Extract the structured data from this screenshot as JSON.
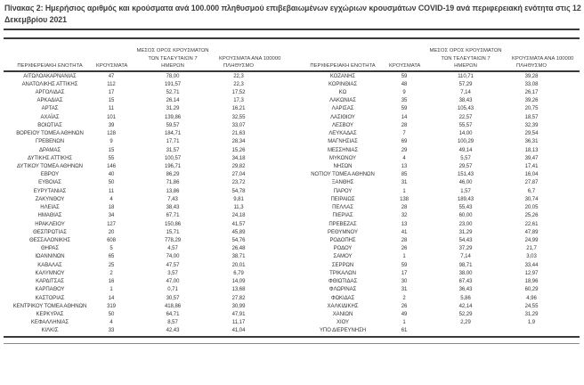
{
  "title": "Πίνακας 2: Ημερήσιος αριθμός και κρούσματα ανά 100.000 πληθυσμού επιβεβαιωμένων εγχώριων κρουσμάτων COVID-19 ανά περιφερειακή ενότητα στις 12 Δεκεμβρίου 2021",
  "columns": {
    "region": "ΠΕΡΙΦΕΡΕΙΑΚΗ ΕΝΟΤΗΤΑ",
    "cases": "ΚΡΟΥΣΜΑΤΑ",
    "avg7_lines": [
      "ΜΕΣΟΣ ΟΡΟΣ ΚΡΟΥΣΜΑΤΩΝ",
      "ΤΩΝ ΤΕΛΕΥΤΑΙΩΝ 7",
      "ΗΜΕΡΩΝ"
    ],
    "per100k_lines": [
      "ΚΡΟΥΣΜΑΤΑ ΑΝΑ 100000",
      "ΠΛΗΘΥΣΜΟ"
    ]
  },
  "tables": {
    "left": {
      "rows": [
        [
          "ΑΙΤΩΛΟΑΚΑΡΝΑΝΙΑΣ",
          "47",
          "78,00",
          "22,3"
        ],
        [
          "ΑΝΑΤΟΛΙΚΗΣ ΑΤΤΙΚΗΣ",
          "112",
          "191,57",
          "22,3"
        ],
        [
          "ΑΡΓΟΛΙΔΑΣ",
          "17",
          "52,71",
          "17,52"
        ],
        [
          "ΑΡΚΑΔΙΑΣ",
          "15",
          "26,14",
          "17,3"
        ],
        [
          "ΑΡΤΑΣ",
          "11",
          "31,29",
          "16,21"
        ],
        [
          "ΑΧΑΪΑΣ",
          "101",
          "139,86",
          "32,55"
        ],
        [
          "ΒΟΙΩΤΙΑΣ",
          "39",
          "59,57",
          "33,07"
        ],
        [
          "ΒΟΡΕΙΟΥ ΤΟΜΕΑ ΑΘΗΝΩΝ",
          "128",
          "184,71",
          "21,63"
        ],
        [
          "ΓΡΕΒΕΝΩΝ",
          "9",
          "17,71",
          "28,34"
        ],
        [
          "ΔΡΑΜΑΣ",
          "15",
          "31,57",
          "15,26"
        ],
        [
          "ΔΥΤΙΚΗΣ ΑΤΤΙΚΗΣ",
          "55",
          "100,57",
          "34,18"
        ],
        [
          "ΔΥΤΙΚΟΥ ΤΟΜΕΑ ΑΘΗΝΩΝ",
          "146",
          "196,71",
          "29,82"
        ],
        [
          "ΕΒΡΟΥ",
          "40",
          "86,29",
          "27,04"
        ],
        [
          "ΕΥΒΟΙΑΣ",
          "50",
          "71,86",
          "23,72"
        ],
        [
          "ΕΥΡΥΤΑΝΙΑΣ",
          "11",
          "13,86",
          "54,78"
        ],
        [
          "ΖΑΚΥΝΘΟΥ",
          "4",
          "7,43",
          "9,81"
        ],
        [
          "ΗΛΕΙΑΣ",
          "18",
          "38,43",
          "11,3"
        ],
        [
          "ΗΜΑΘΙΑΣ",
          "34",
          "67,71",
          "24,18"
        ],
        [
          "ΗΡΑΚΛΕΙΟΥ",
          "127",
          "150,86",
          "41,57"
        ],
        [
          "ΘΕΣΠΡΩΤΙΑΣ",
          "20",
          "15,71",
          "45,89"
        ],
        [
          "ΘΕΣΣΑΛΟΝΙΚΗΣ",
          "608",
          "778,29",
          "54,76"
        ],
        [
          "ΘΗΡΑΣ",
          "5",
          "4,57",
          "26,48"
        ],
        [
          "ΙΩΑΝΝΙΝΩΝ",
          "65",
          "74,00",
          "38,71"
        ],
        [
          "ΚΑΒΑΛΑΣ",
          "25",
          "47,57",
          "20,01"
        ],
        [
          "ΚΑΛΥΜΝΟΥ",
          "2",
          "3,57",
          "6,79"
        ],
        [
          "ΚΑΡΔΙΤΣΑΣ",
          "16",
          "47,00",
          "14,09"
        ],
        [
          "ΚΑΡΠΑΘΟΥ",
          "1",
          "0,71",
          "13,68"
        ],
        [
          "ΚΑΣΤΟΡΙΑΣ",
          "14",
          "30,57",
          "27,82"
        ],
        [
          "ΚΕΝΤΡΙΚΟΥ ΤΟΜΕΑ ΑΘΗΝΩΝ",
          "319",
          "418,86",
          "30,99"
        ],
        [
          "ΚΕΡΚΥΡΑΣ",
          "50",
          "64,71",
          "47,91"
        ],
        [
          "ΚΕΦΑΛΛΗΝΙΑΣ",
          "4",
          "8,57",
          "11,17"
        ],
        [
          "ΚΙΛΚΙΣ",
          "33",
          "42,43",
          "41,04"
        ]
      ]
    },
    "right": {
      "rows": [
        [
          "ΚΟΖΑΝΗΣ",
          "59",
          "110,71",
          "39,28"
        ],
        [
          "ΚΟΡΙΝΘΙΑΣ",
          "48",
          "57,29",
          "33,08"
        ],
        [
          "ΚΩ",
          "9",
          "7,14",
          "26,17"
        ],
        [
          "ΛΑΚΩΝΙΑΣ",
          "35",
          "38,43",
          "39,26"
        ],
        [
          "ΛΑΡΙΣΑΣ",
          "59",
          "105,43",
          "20,75"
        ],
        [
          "ΛΑΣΙΘΙΟΥ",
          "14",
          "22,57",
          "18,57"
        ],
        [
          "ΛΕΣΒΟΥ",
          "28",
          "55,57",
          "32,39"
        ],
        [
          "ΛΕΥΚΑΔΑΣ",
          "7",
          "14,00",
          "29,54"
        ],
        [
          "ΜΑΓΝΗΣΙΑΣ",
          "69",
          "100,29",
          "36,31"
        ],
        [
          "ΜΕΣΣΗΝΙΑΣ",
          "29",
          "49,14",
          "18,13"
        ],
        [
          "ΜΥΚΟΝΟΥ",
          "4",
          "5,57",
          "39,47"
        ],
        [
          "ΝΗΣΩΝ",
          "13",
          "29,57",
          "17,41"
        ],
        [
          "ΝΟΤΙΟΥ ΤΟΜΕΑ ΑΘΗΝΩΝ",
          "85",
          "151,43",
          "16,04"
        ],
        [
          "ΞΑΝΘΗΣ",
          "31",
          "46,00",
          "27,87"
        ],
        [
          "ΠΑΡΟΥ",
          "1",
          "1,57",
          "6,7"
        ],
        [
          "ΠΕΙΡΑΙΩΣ",
          "138",
          "189,43",
          "30,74"
        ],
        [
          "ΠΕΛΛΑΣ",
          "28",
          "55,43",
          "20,05"
        ],
        [
          "ΠΙΕΡΙΑΣ",
          "32",
          "60,00",
          "25,26"
        ],
        [
          "ΠΡΕΒΕΖΑΣ",
          "13",
          "23,00",
          "22,61"
        ],
        [
          "ΡΕΘΥΜΝΟΥ",
          "41",
          "31,29",
          "47,89"
        ],
        [
          "ΡΟΔΟΠΗΣ",
          "28",
          "54,43",
          "24,99"
        ],
        [
          "ΡΟΔΟΥ",
          "26",
          "37,29",
          "21,7"
        ],
        [
          "ΣΑΜΟΥ",
          "1",
          "7,14",
          "3,03"
        ],
        [
          "ΣΕΡΡΩΝ",
          "59",
          "98,71",
          "33,44"
        ],
        [
          "ΤΡΙΚΑΛΩΝ",
          "17",
          "38,00",
          "12,97"
        ],
        [
          "ΦΘΙΩΤΙΔΑΣ",
          "30",
          "67,43",
          "18,96"
        ],
        [
          "ΦΛΩΡΙΝΑΣ",
          "31",
          "36,43",
          "60,29"
        ],
        [
          "ΦΩΚΙΔΑΣ",
          "2",
          "5,86",
          "4,96"
        ],
        [
          "ΧΑΛΚΙΔΙΚΗΣ",
          "26",
          "42,14",
          "24,55"
        ],
        [
          "ΧΑΝΙΩΝ",
          "49",
          "52,29",
          "31,29"
        ],
        [
          "ΧΙΟΥ",
          "1",
          "2,29",
          "1,9"
        ],
        [
          "ΥΠΟ ΔΙΕΡΕΥΝΗΣΗ",
          "61",
          "",
          ""
        ]
      ]
    }
  },
  "colors": {
    "text": "#333333",
    "rule_dark": "#3a3a3a",
    "rule_light": "#8a8a8a",
    "background": "#ffffff"
  }
}
